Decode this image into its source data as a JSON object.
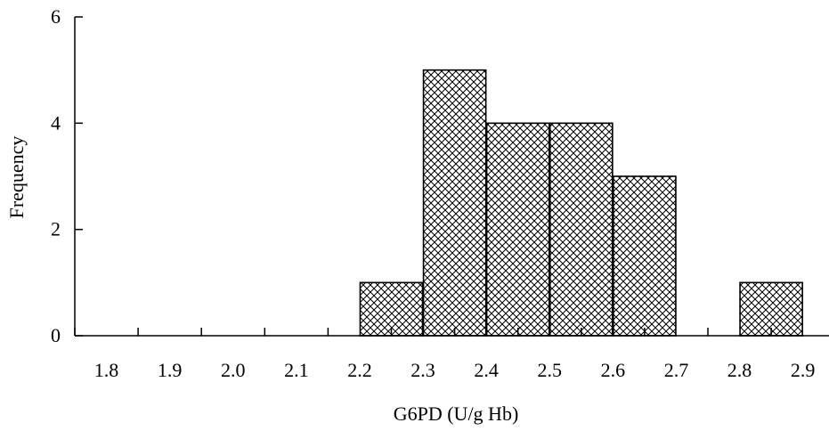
{
  "chart_data": {
    "type": "bar",
    "title": "",
    "xlabel": "G6PD (U/g Hb)",
    "ylabel": "Frequency",
    "categories": [
      "1.8",
      "1.9",
      "2.0",
      "2.1",
      "2.2",
      "2.3",
      "2.4",
      "2.5",
      "2.6",
      "2.7",
      "2.8",
      "2.9"
    ],
    "values": [
      0,
      0,
      0,
      0,
      1,
      5,
      4,
      4,
      3,
      0,
      1,
      0
    ],
    "ylim": [
      0,
      6
    ],
    "yticks": [
      "0",
      "2",
      "4",
      "6"
    ],
    "grid": false,
    "bar_fill": "crosshatch",
    "colors": {
      "axis": "#000000",
      "bar_stroke": "#000000",
      "hatch": "#000000",
      "background": "#ffffff"
    }
  }
}
